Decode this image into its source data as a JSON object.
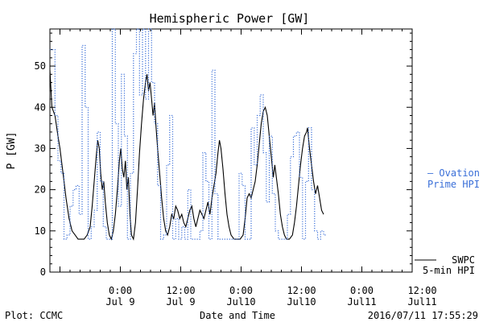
{
  "chart_data": {
    "type": "line",
    "title": "Hemispheric Power [GW]",
    "ylabel": "P [GW]",
    "xlabel": "Date and Time",
    "ylim": [
      0,
      59
    ],
    "xlim_hours": [
      -7,
      29
    ],
    "y_ticks": [
      0,
      10,
      20,
      30,
      40,
      50
    ],
    "x_ticks": [
      {
        "h": 0,
        "top": "0:00",
        "bottom": "Jul 9"
      },
      {
        "h": 6,
        "top": "12:00",
        "bottom": "Jul 9"
      },
      {
        "h": 12,
        "top": "0:00",
        "bottom": "Jul10"
      },
      {
        "h": 18,
        "top": "12:00",
        "bottom": "Jul10"
      },
      {
        "h": 24,
        "top": "0:00",
        "bottom": "Jul11"
      },
      {
        "h": 30,
        "top": "12:00",
        "bottom": "Jul11"
      }
    ],
    "grid": false,
    "legend": [
      {
        "label_line1": "— Ovation",
        "label_line2": "Prime HPI",
        "color": "#3a6fd8",
        "style": "dotted"
      },
      {
        "label_line1": "SWPC",
        "label_line2": "5-min HPI",
        "color": "#000000",
        "style": "solid"
      }
    ],
    "footer_left": "Plot: CCMC",
    "footer_right": "2016/07/11 17:55:29",
    "series": [
      {
        "style": "solid",
        "color": "#000000",
        "points": [
          [
            -7.0,
            49
          ],
          [
            -6.8,
            40
          ],
          [
            -6.5,
            38
          ],
          [
            -6.2,
            33
          ],
          [
            -6.0,
            30
          ],
          [
            -5.7,
            24
          ],
          [
            -5.4,
            18
          ],
          [
            -5.1,
            13
          ],
          [
            -4.8,
            10
          ],
          [
            -4.5,
            9
          ],
          [
            -4.2,
            8
          ],
          [
            -3.9,
            8
          ],
          [
            -3.6,
            8
          ],
          [
            -3.3,
            9
          ],
          [
            -3.0,
            11
          ],
          [
            -2.8,
            16
          ],
          [
            -2.6,
            22
          ],
          [
            -2.4,
            28
          ],
          [
            -2.25,
            32
          ],
          [
            -2.1,
            30
          ],
          [
            -1.95,
            24
          ],
          [
            -1.8,
            20
          ],
          [
            -1.65,
            22
          ],
          [
            -1.5,
            17
          ],
          [
            -1.3,
            12
          ],
          [
            -1.1,
            9
          ],
          [
            -0.9,
            8
          ],
          [
            -0.7,
            10
          ],
          [
            -0.5,
            14
          ],
          [
            -0.3,
            20
          ],
          [
            -0.1,
            27
          ],
          [
            0.05,
            30
          ],
          [
            0.2,
            25
          ],
          [
            0.35,
            23
          ],
          [
            0.5,
            27
          ],
          [
            0.65,
            20
          ],
          [
            0.8,
            23
          ],
          [
            0.95,
            14
          ],
          [
            1.1,
            9
          ],
          [
            1.3,
            8
          ],
          [
            1.5,
            12
          ],
          [
            1.7,
            20
          ],
          [
            1.9,
            29
          ],
          [
            2.1,
            36
          ],
          [
            2.3,
            42
          ],
          [
            2.5,
            46
          ],
          [
            2.65,
            48
          ],
          [
            2.8,
            44
          ],
          [
            2.95,
            46
          ],
          [
            3.1,
            42
          ],
          [
            3.25,
            38
          ],
          [
            3.4,
            41
          ],
          [
            3.55,
            35
          ],
          [
            3.7,
            30
          ],
          [
            3.9,
            24
          ],
          [
            4.1,
            18
          ],
          [
            4.3,
            13
          ],
          [
            4.5,
            10
          ],
          [
            4.7,
            9
          ],
          [
            4.9,
            11
          ],
          [
            5.1,
            14
          ],
          [
            5.3,
            13
          ],
          [
            5.5,
            16
          ],
          [
            5.7,
            15
          ],
          [
            5.9,
            13
          ],
          [
            6.1,
            14
          ],
          [
            6.3,
            12
          ],
          [
            6.5,
            11
          ],
          [
            6.7,
            13
          ],
          [
            6.9,
            15
          ],
          [
            7.1,
            16
          ],
          [
            7.3,
            13
          ],
          [
            7.5,
            11
          ],
          [
            7.7,
            13
          ],
          [
            7.9,
            15
          ],
          [
            8.1,
            14
          ],
          [
            8.3,
            13
          ],
          [
            8.5,
            15
          ],
          [
            8.7,
            17
          ],
          [
            8.9,
            14
          ],
          [
            9.1,
            18
          ],
          [
            9.3,
            21
          ],
          [
            9.5,
            24
          ],
          [
            9.7,
            29
          ],
          [
            9.85,
            32
          ],
          [
            10.0,
            30
          ],
          [
            10.2,
            25
          ],
          [
            10.4,
            19
          ],
          [
            10.6,
            14
          ],
          [
            10.8,
            11
          ],
          [
            11.0,
            9
          ],
          [
            11.3,
            8
          ],
          [
            11.6,
            8
          ],
          [
            11.9,
            8
          ],
          [
            12.2,
            9
          ],
          [
            12.4,
            13
          ],
          [
            12.6,
            18
          ],
          [
            12.8,
            19
          ],
          [
            13.0,
            18
          ],
          [
            13.2,
            20
          ],
          [
            13.4,
            22
          ],
          [
            13.6,
            26
          ],
          [
            13.8,
            31
          ],
          [
            14.0,
            36
          ],
          [
            14.2,
            39
          ],
          [
            14.4,
            40
          ],
          [
            14.6,
            38
          ],
          [
            14.8,
            33
          ],
          [
            15.0,
            28
          ],
          [
            15.2,
            23
          ],
          [
            15.35,
            26
          ],
          [
            15.5,
            23
          ],
          [
            15.7,
            19
          ],
          [
            15.9,
            14
          ],
          [
            16.1,
            11
          ],
          [
            16.3,
            9
          ],
          [
            16.5,
            8
          ],
          [
            16.8,
            8
          ],
          [
            17.1,
            9
          ],
          [
            17.3,
            12
          ],
          [
            17.5,
            16
          ],
          [
            17.7,
            21
          ],
          [
            17.9,
            26
          ],
          [
            18.1,
            30
          ],
          [
            18.3,
            33
          ],
          [
            18.5,
            34
          ],
          [
            18.6,
            35
          ],
          [
            18.8,
            30
          ],
          [
            19.0,
            26
          ],
          [
            19.2,
            22
          ],
          [
            19.4,
            19
          ],
          [
            19.6,
            21
          ],
          [
            19.8,
            18
          ],
          [
            20.0,
            15
          ],
          [
            20.2,
            14
          ]
        ]
      },
      {
        "style": "dotted",
        "color": "#3a6fd8",
        "points": [
          [
            -7.0,
            54
          ],
          [
            -6.5,
            38
          ],
          [
            -6.2,
            27
          ],
          [
            -5.9,
            24
          ],
          [
            -5.6,
            8
          ],
          [
            -5.3,
            9
          ],
          [
            -5.0,
            16
          ],
          [
            -4.7,
            20
          ],
          [
            -4.4,
            21
          ],
          [
            -4.1,
            14
          ],
          [
            -3.8,
            55
          ],
          [
            -3.5,
            40
          ],
          [
            -3.2,
            8
          ],
          [
            -2.9,
            11
          ],
          [
            -2.6,
            15
          ],
          [
            -2.3,
            34
          ],
          [
            -2.0,
            22
          ],
          [
            -1.7,
            11
          ],
          [
            -1.4,
            8
          ],
          [
            -1.1,
            8
          ],
          [
            -0.8,
            59
          ],
          [
            -0.5,
            36
          ],
          [
            -0.2,
            16
          ],
          [
            0.1,
            48
          ],
          [
            0.4,
            33
          ],
          [
            0.7,
            8
          ],
          [
            1.0,
            24
          ],
          [
            1.3,
            53
          ],
          [
            1.6,
            59
          ],
          [
            1.9,
            43
          ],
          [
            2.2,
            59
          ],
          [
            2.5,
            42
          ],
          [
            2.8,
            59
          ],
          [
            3.1,
            46
          ],
          [
            3.4,
            36
          ],
          [
            3.7,
            21
          ],
          [
            4.0,
            8
          ],
          [
            4.3,
            9
          ],
          [
            4.6,
            26
          ],
          [
            4.9,
            38
          ],
          [
            5.2,
            8
          ],
          [
            5.5,
            13
          ],
          [
            5.8,
            8
          ],
          [
            6.1,
            11
          ],
          [
            6.4,
            8
          ],
          [
            6.7,
            20
          ],
          [
            7.0,
            8
          ],
          [
            7.3,
            8
          ],
          [
            7.6,
            8
          ],
          [
            7.9,
            10
          ],
          [
            8.2,
            29
          ],
          [
            8.5,
            22
          ],
          [
            8.8,
            8
          ],
          [
            9.1,
            49
          ],
          [
            9.4,
            19
          ],
          [
            9.7,
            8
          ],
          [
            10.0,
            8
          ],
          [
            10.3,
            8
          ],
          [
            10.6,
            8
          ],
          [
            10.9,
            8
          ],
          [
            11.2,
            8
          ],
          [
            11.5,
            8
          ],
          [
            11.8,
            24
          ],
          [
            12.1,
            21
          ],
          [
            12.4,
            8
          ],
          [
            12.7,
            8
          ],
          [
            13.0,
            35
          ],
          [
            13.3,
            26
          ],
          [
            13.6,
            38
          ],
          [
            13.9,
            43
          ],
          [
            14.2,
            29
          ],
          [
            14.5,
            17
          ],
          [
            14.8,
            33
          ],
          [
            15.1,
            19
          ],
          [
            15.4,
            10
          ],
          [
            15.7,
            8
          ],
          [
            16.0,
            8
          ],
          [
            16.3,
            8
          ],
          [
            16.6,
            14
          ],
          [
            16.9,
            28
          ],
          [
            17.2,
            33
          ],
          [
            17.5,
            34
          ],
          [
            17.8,
            23
          ],
          [
            18.1,
            8
          ],
          [
            18.4,
            22
          ],
          [
            18.7,
            35
          ],
          [
            19.0,
            20
          ],
          [
            19.3,
            10
          ],
          [
            19.6,
            8
          ],
          [
            19.9,
            10
          ],
          [
            20.2,
            9
          ]
        ]
      }
    ]
  }
}
